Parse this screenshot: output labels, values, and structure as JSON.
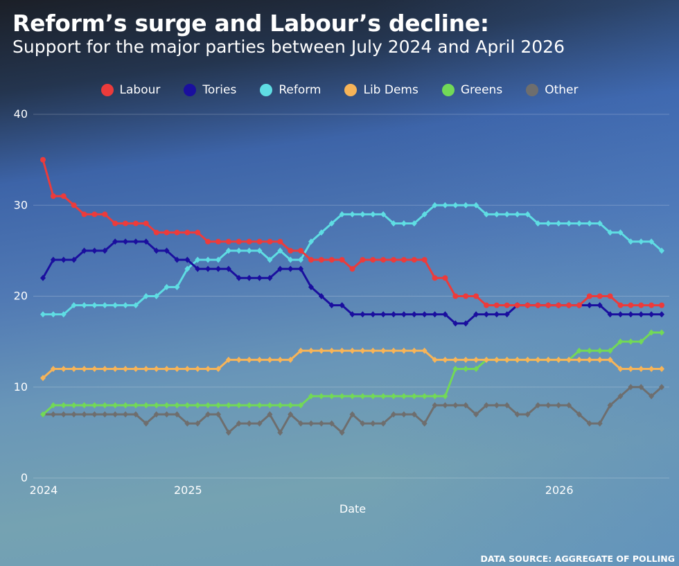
{
  "header": {
    "title": "Reform’s surge and Labour’s decline:",
    "subtitle": "Support for the major parties between July 2024 and April 2026"
  },
  "footer": {
    "source": "DATA SOURCE: AGGREGATE OF POLLING"
  },
  "chart_data": {
    "type": "line",
    "title": "Reform’s surge and Labour’s decline:",
    "subtitle": "Support for the major parties between July 2024 and April 2026",
    "xlabel": "Date",
    "ylabel": "",
    "ylim": [
      0,
      40
    ],
    "y_ticks": [
      "0",
      "10",
      "20",
      "30",
      "40"
    ],
    "x_ticks": [
      {
        "label": "2024",
        "index": 0
      },
      {
        "label": "2025",
        "index": 14
      },
      {
        "label": "2026",
        "index": 50
      }
    ],
    "grid": "horizontal",
    "legend_position": "top-center",
    "series": [
      {
        "name": "Labour",
        "color": "#ec3b3b",
        "marker": "circle",
        "values": [
          35,
          31,
          31,
          30,
          29,
          29,
          29,
          28,
          28,
          28,
          28,
          27,
          27,
          27,
          27,
          27,
          26,
          26,
          26,
          26,
          26,
          26,
          26,
          26,
          25,
          25,
          24,
          24,
          24,
          24,
          23,
          24,
          24,
          24,
          24,
          24,
          24,
          24,
          22,
          22,
          20,
          20,
          20,
          19,
          19,
          19,
          19,
          19,
          19,
          19,
          19,
          19,
          19,
          20,
          20,
          20,
          19,
          19,
          19,
          19,
          19
        ]
      },
      {
        "name": "Tories",
        "color": "#1a0f9e",
        "marker": "diamond",
        "values": [
          22,
          24,
          24,
          24,
          25,
          25,
          25,
          26,
          26,
          26,
          26,
          25,
          25,
          24,
          24,
          23,
          23,
          23,
          23,
          22,
          22,
          22,
          22,
          23,
          23,
          23,
          21,
          20,
          19,
          19,
          18,
          18,
          18,
          18,
          18,
          18,
          18,
          18,
          18,
          18,
          17,
          17,
          18,
          18,
          18,
          18,
          19,
          19,
          19,
          19,
          19,
          19,
          19,
          19,
          19,
          18,
          18,
          18,
          18,
          18,
          18
        ]
      },
      {
        "name": "Reform",
        "color": "#5fdde3",
        "marker": "diamond",
        "values": [
          18,
          18,
          18,
          19,
          19,
          19,
          19,
          19,
          19,
          19,
          20,
          20,
          21,
          21,
          23,
          24,
          24,
          24,
          25,
          25,
          25,
          25,
          24,
          25,
          24,
          24,
          26,
          27,
          28,
          29,
          29,
          29,
          29,
          29,
          28,
          28,
          28,
          29,
          30,
          30,
          30,
          30,
          30,
          29,
          29,
          29,
          29,
          29,
          28,
          28,
          28,
          28,
          28,
          28,
          28,
          27,
          27,
          26,
          26,
          26,
          25
        ]
      },
      {
        "name": "Lib Dems",
        "color": "#f7b458",
        "marker": "diamond",
        "values": [
          11,
          12,
          12,
          12,
          12,
          12,
          12,
          12,
          12,
          12,
          12,
          12,
          12,
          12,
          12,
          12,
          12,
          12,
          13,
          13,
          13,
          13,
          13,
          13,
          13,
          14,
          14,
          14,
          14,
          14,
          14,
          14,
          14,
          14,
          14,
          14,
          14,
          14,
          13,
          13,
          13,
          13,
          13,
          13,
          13,
          13,
          13,
          13,
          13,
          13,
          13,
          13,
          13,
          13,
          13,
          13,
          12,
          12,
          12,
          12,
          12
        ]
      },
      {
        "name": "Greens",
        "color": "#72d957",
        "marker": "diamond",
        "values": [
          7,
          8,
          8,
          8,
          8,
          8,
          8,
          8,
          8,
          8,
          8,
          8,
          8,
          8,
          8,
          8,
          8,
          8,
          8,
          8,
          8,
          8,
          8,
          8,
          8,
          8,
          9,
          9,
          9,
          9,
          9,
          9,
          9,
          9,
          9,
          9,
          9,
          9,
          9,
          9,
          12,
          12,
          12,
          13,
          13,
          13,
          13,
          13,
          13,
          13,
          13,
          13,
          14,
          14,
          14,
          14,
          15,
          15,
          15,
          16,
          16
        ]
      },
      {
        "name": "Other",
        "color": "#6e6e6e",
        "marker": "diamond",
        "values": [
          7,
          7,
          7,
          7,
          7,
          7,
          7,
          7,
          7,
          7,
          6,
          7,
          7,
          7,
          6,
          6,
          7,
          7,
          5,
          6,
          6,
          6,
          7,
          5,
          7,
          6,
          6,
          6,
          6,
          5,
          7,
          6,
          6,
          6,
          7,
          7,
          7,
          6,
          8,
          8,
          8,
          8,
          7,
          8,
          8,
          8,
          7,
          7,
          8,
          8,
          8,
          8,
          7,
          6,
          6,
          8,
          9,
          10,
          10,
          9,
          10
        ]
      }
    ]
  }
}
